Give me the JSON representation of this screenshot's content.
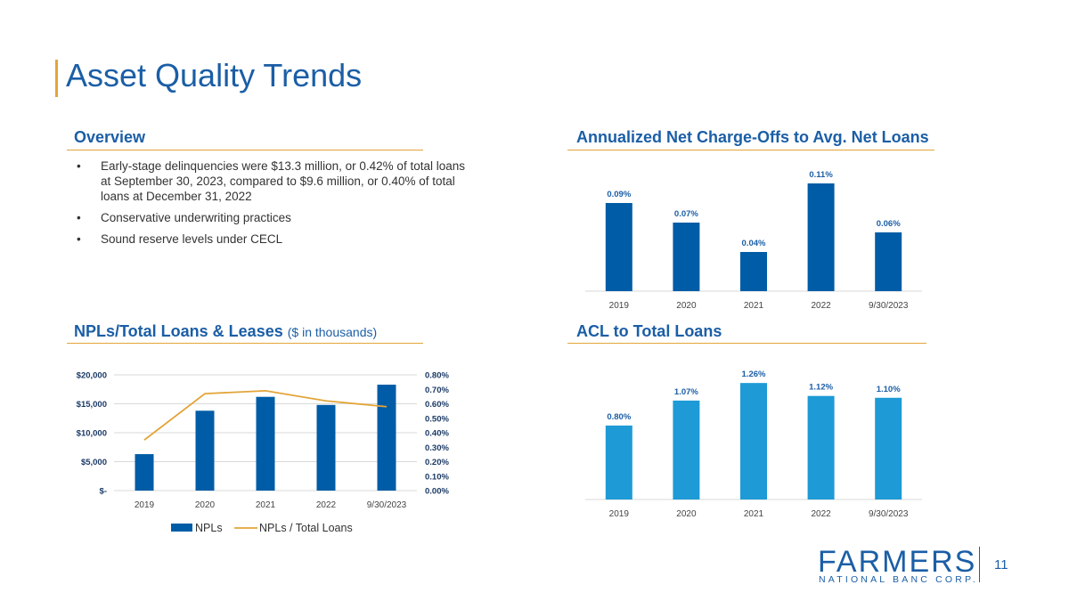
{
  "title": "Asset Quality Trends",
  "overview": {
    "heading": "Overview",
    "bullets": [
      "Early-stage delinquencies were $13.3 million, or 0.42% of total loans at September 30, 2023, compared to $9.6 million, or 0.40% of total loans at December 31, 2022",
      "Conservative underwriting practices",
      "Sound reserve levels under CECL"
    ]
  },
  "npl_section": {
    "heading": "NPLs/Total Loans & Leases",
    "subheading": "($ in thousands)"
  },
  "nco_section": {
    "heading": "Annualized Net Charge-Offs to Avg. Net Loans"
  },
  "acl_section": {
    "heading": "ACL to Total Loans"
  },
  "logo": {
    "name": "FARMERS",
    "sub": "NATIONAL BANC CORP."
  },
  "page_number": "11",
  "colors": {
    "brand_blue": "#1b5ea6",
    "bar_dark": "#005ca6",
    "bar_light": "#1e9ad6",
    "accent_gold": "#e3a53a"
  },
  "chart_data": [
    {
      "id": "nco",
      "type": "bar",
      "categories": [
        "2019",
        "2020",
        "2021",
        "2022",
        "9/30/2023"
      ],
      "values": [
        0.09,
        0.07,
        0.04,
        0.11,
        0.06
      ],
      "data_labels": [
        "0.09%",
        "0.07%",
        "0.04%",
        "0.11%",
        "0.06%"
      ],
      "title": "Annualized Net Charge-Offs to Avg. Net Loans",
      "ylim": [
        0,
        0.12
      ],
      "grid": false
    },
    {
      "id": "acl",
      "type": "bar",
      "categories": [
        "2019",
        "2020",
        "2021",
        "2022",
        "9/30/2023"
      ],
      "values": [
        0.8,
        1.07,
        1.26,
        1.12,
        1.1
      ],
      "data_labels": [
        "0.80%",
        "1.07%",
        "1.26%",
        "1.12%",
        "1.10%"
      ],
      "title": "ACL to Total Loans",
      "ylim": [
        0,
        1.3
      ],
      "grid": false
    },
    {
      "id": "npl",
      "type": "bar",
      "categories": [
        "2019",
        "2020",
        "2021",
        "2022",
        "9/30/2023"
      ],
      "series": [
        {
          "name": "NPLs",
          "type": "bar",
          "values": [
            6300,
            13800,
            16200,
            14800,
            18300
          ]
        },
        {
          "name": "NPLs / Total Loans",
          "type": "line",
          "values": [
            0.35,
            0.67,
            0.69,
            0.62,
            0.58
          ]
        }
      ],
      "y_left": {
        "ylim": [
          0,
          20000
        ],
        "ticks": [
          0,
          5000,
          10000,
          15000,
          20000
        ],
        "tick_labels": [
          "$-",
          "$5,000",
          "$10,000",
          "$15,000",
          "$20,000"
        ]
      },
      "y_right": {
        "ylim": [
          0,
          0.8
        ],
        "ticks": [
          0,
          0.1,
          0.2,
          0.3,
          0.4,
          0.5,
          0.6,
          0.7,
          0.8
        ],
        "tick_labels": [
          "0.00%",
          "0.10%",
          "0.20%",
          "0.30%",
          "0.40%",
          "0.50%",
          "0.60%",
          "0.70%",
          "0.80%"
        ]
      },
      "grid": true,
      "legend": "bottom"
    }
  ]
}
